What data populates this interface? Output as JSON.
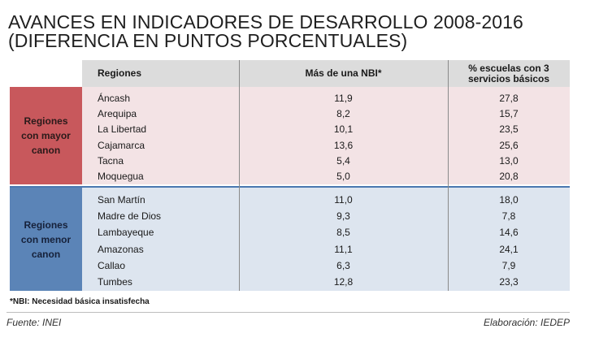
{
  "chart_data": {
    "type": "table",
    "title_line1": "AVANCES EN INDICADORES DE DESARROLLO 2008-2016",
    "title_line2": "(DIFERENCIA EN PUNTOS PORCENTUALES)",
    "columns": [
      "Regiones",
      "Más de una NBI*",
      "% escuelas con 3 servicios básicos"
    ],
    "column_header_3_line1": "% escuelas con 3",
    "column_header_3_line2": "servicios básicos",
    "groups": [
      {
        "label": "Regiones con mayor canon",
        "label_lines": [
          "Regiones",
          "con mayor",
          "canon"
        ],
        "color": "#c8585c",
        "rows": [
          {
            "region": "Áncash",
            "nbi": "11,9",
            "escuelas": "27,8"
          },
          {
            "region": "Arequipa",
            "nbi": "8,2",
            "escuelas": "15,7"
          },
          {
            "region": "La Libertad",
            "nbi": "10,1",
            "escuelas": "23,5"
          },
          {
            "region": "Cajamarca",
            "nbi": "13,6",
            "escuelas": "25,6"
          },
          {
            "region": "Tacna",
            "nbi": "5,4",
            "escuelas": "13,0"
          },
          {
            "region": "Moquegua",
            "nbi": "5,0",
            "escuelas": "20,8"
          }
        ]
      },
      {
        "label": "Regiones con menor canon",
        "label_lines": [
          "Regiones",
          "con menor",
          "canon"
        ],
        "color": "#5b84b7",
        "rows": [
          {
            "region": "San Martín",
            "nbi": "11,0",
            "escuelas": "18,0"
          },
          {
            "region": "Madre de Dios",
            "nbi": "9,3",
            "escuelas": "7,8"
          },
          {
            "region": "Lambayeque",
            "nbi": "8,5",
            "escuelas": "14,6"
          },
          {
            "region": "Amazonas",
            "nbi": "11,1",
            "escuelas": "24,1"
          },
          {
            "region": "Callao",
            "nbi": "6,3",
            "escuelas": "7,9"
          },
          {
            "region": "Tumbes",
            "nbi": "12,8",
            "escuelas": "23,3"
          }
        ]
      }
    ],
    "note": "*NBI: Necesidad básica insatisfecha",
    "source": "Fuente: INEI",
    "elaboration": "Elaboración: IEDEP"
  }
}
